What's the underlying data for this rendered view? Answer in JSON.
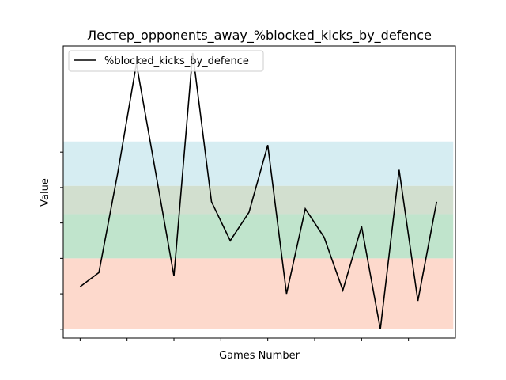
{
  "chart_data": {
    "type": "line",
    "title": "Лестер_opponents_away_%blocked_kicks_by_defence",
    "xlabel": "Games Number",
    "ylabel": "Value",
    "x": [
      1,
      2,
      3,
      4,
      5,
      6,
      7,
      8,
      9,
      10,
      11,
      12,
      13,
      14,
      15,
      16,
      17,
      18,
      19,
      20
    ],
    "series": [
      {
        "name": "%blocked_kicks_by_defence",
        "color": "#000000",
        "values": [
          12,
          16,
          44,
          75,
          45,
          15,
          78,
          36,
          25,
          33,
          52,
          10,
          34,
          26,
          11,
          29,
          0,
          45,
          8,
          36
        ]
      }
    ],
    "ylim": [
      -2.5,
      80
    ],
    "xlim": [
      0.1,
      21.0
    ],
    "bands": [
      {
        "from": 0,
        "to": 20,
        "color": "#fdd9cc"
      },
      {
        "from": 20,
        "to": 32.5,
        "color": "#c0e4cc"
      },
      {
        "from": 32.5,
        "to": 40.5,
        "color": "#d2dfcf"
      },
      {
        "from": 40.5,
        "to": 53,
        "color": "#d6edf2"
      }
    ],
    "x_ticks": [
      1,
      3.5,
      6,
      8.5,
      11,
      13.5,
      16,
      18.5
    ],
    "y_ticks": [
      0,
      10,
      20,
      30,
      40,
      50
    ],
    "tick_labels_shown": false,
    "legend_position": "top-left",
    "grid": false
  }
}
